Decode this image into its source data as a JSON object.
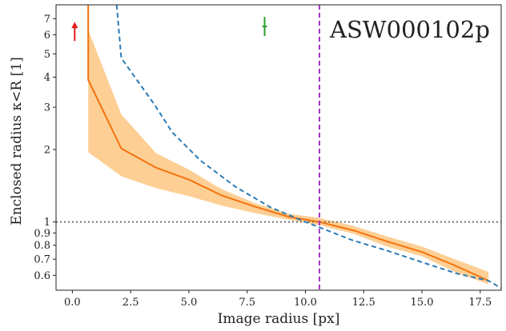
{
  "chart_data": {
    "type": "line",
    "title": "ASW000102p",
    "xlabel": "Image radius [px]",
    "ylabel": "Enclosed radius κ<R [1]",
    "xlim": [
      -0.7,
      18.4
    ],
    "ylim": [
      0.52,
      8.0
    ],
    "yscale": "log",
    "grid": false,
    "xticks": [
      0,
      2.5,
      5,
      7.5,
      10,
      12.5,
      15,
      17.5
    ],
    "xtick_labels": [
      "0.0",
      "2.5",
      "5.0",
      "7.5",
      "10.0",
      "12.5",
      "15.0",
      "17.5"
    ],
    "yticks": [
      0.6,
      0.7,
      0.8,
      0.9,
      1,
      2,
      3,
      4,
      5,
      6,
      7
    ],
    "ytick_labels": [
      "0.6",
      "0.7",
      "0.8",
      "0.9",
      "1",
      "2",
      "3",
      "4",
      "5",
      "6",
      "7"
    ],
    "series": [
      {
        "kind": "band",
        "color": "#fdcf95",
        "x": [
          0.68,
          0.68,
          2.1,
          3.6,
          5.0,
          6.4,
          7.8,
          9.3,
          10.6,
          12.1,
          13.5,
          15.0,
          16.4,
          17.85
        ],
        "upper": [
          8.0,
          6.3,
          2.8,
          1.93,
          1.65,
          1.37,
          1.2,
          1.08,
          1.04,
          0.96,
          0.87,
          0.79,
          0.7,
          0.62
        ],
        "lower": [
          8.0,
          1.95,
          1.55,
          1.38,
          1.28,
          1.17,
          1.09,
          1.02,
          0.97,
          0.89,
          0.79,
          0.72,
          0.62,
          0.55
        ]
      },
      {
        "kind": "line",
        "style": "solid",
        "color": "#f5720c",
        "x": [
          0.68,
          0.68,
          2.1,
          3.6,
          5.0,
          6.4,
          7.8,
          9.3,
          10.6,
          12.1,
          13.5,
          15.0,
          16.4,
          17.85
        ],
        "y": [
          8.0,
          3.9,
          2.02,
          1.68,
          1.5,
          1.29,
          1.16,
          1.05,
          1.0,
          0.92,
          0.83,
          0.75,
          0.66,
          0.57
        ]
      },
      {
        "kind": "line",
        "style": "dashed",
        "color": "#2c7bb6",
        "x": [
          1.9,
          2.1,
          3.5,
          4.3,
          5.5,
          7.0,
          8.5,
          10.0,
          10.6,
          12.0,
          13.5,
          15.0,
          16.5,
          17.85,
          18.4
        ],
        "y": [
          8.0,
          4.8,
          3.1,
          2.35,
          1.8,
          1.4,
          1.15,
          1.0,
          0.95,
          0.84,
          0.76,
          0.68,
          0.61,
          0.57,
          0.53
        ]
      },
      {
        "kind": "vline",
        "style": "dashed",
        "color": "#a633c6",
        "x": 10.6
      },
      {
        "kind": "hline",
        "style": "dotted",
        "color": "#555555",
        "y": 1.0
      }
    ],
    "markers": [
      {
        "kind": "arrow-up",
        "color": "#e31a1c",
        "x": 0.1,
        "y": 6.2
      },
      {
        "kind": "vertical-tick",
        "color": "#2ca02c",
        "x": 8.25,
        "y": 6.5
      }
    ]
  }
}
